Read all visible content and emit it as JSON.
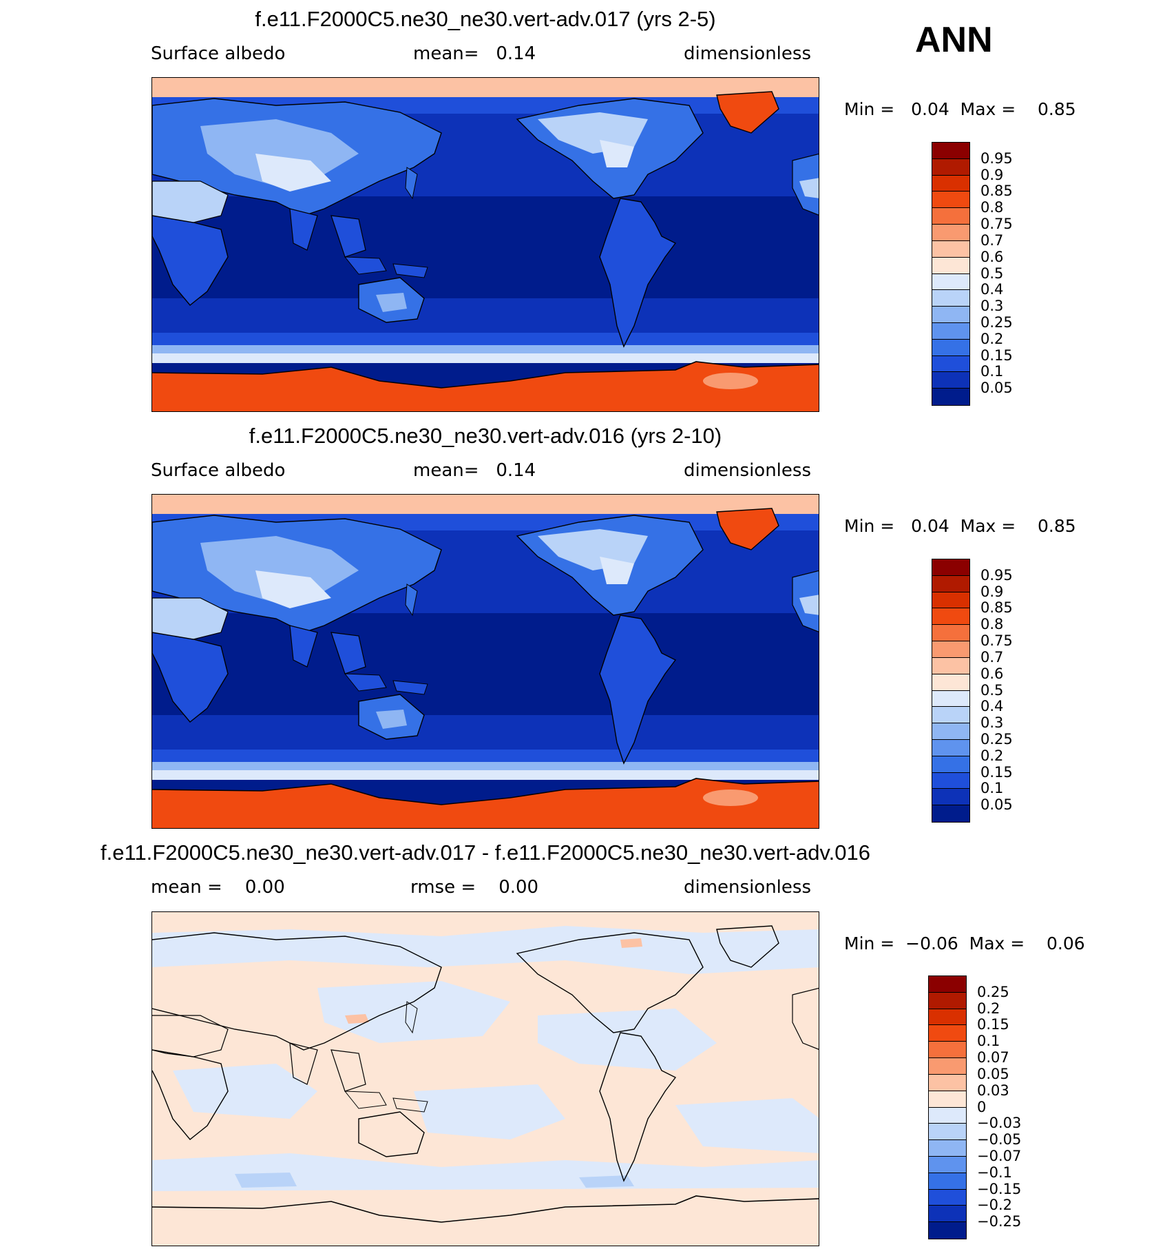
{
  "season": "ANN",
  "panels": [
    {
      "title": "f.e11.F2000C5.ne30_ne30.vert-adv.017 (yrs 2-5)",
      "left_text": "Surface albedo",
      "mid_text": "mean=   0.14",
      "right_text": "dimensionless",
      "minmax": "Min =   0.04  Max =    0.85",
      "colorbar_labels": [
        "0.95",
        "0.9",
        "0.85",
        "0.8",
        "0.75",
        "0.7",
        "0.6",
        "0.5",
        "0.4",
        "0.3",
        "0.25",
        "0.2",
        "0.15",
        "0.1",
        "0.05"
      ],
      "colors": [
        "#8b0000",
        "#b01a00",
        "#d93000",
        "#f04a10",
        "#f5703c",
        "#f99a70",
        "#fcc2a4",
        "#fde6d6",
        "#dde9fb",
        "#b9d3f8",
        "#8fb6f3",
        "#5f93ee",
        "#3571e6",
        "#1f4fda",
        "#0d32b8",
        "#001c8c"
      ]
    },
    {
      "title": "f.e11.F2000C5.ne30_ne30.vert-adv.016 (yrs 2-10)",
      "left_text": "Surface albedo",
      "mid_text": "mean=   0.14",
      "right_text": "dimensionless",
      "minmax": "Min =   0.04  Max =    0.85",
      "colorbar_labels": [
        "0.95",
        "0.9",
        "0.85",
        "0.8",
        "0.75",
        "0.7",
        "0.6",
        "0.5",
        "0.4",
        "0.3",
        "0.25",
        "0.2",
        "0.15",
        "0.1",
        "0.05"
      ],
      "colors": [
        "#8b0000",
        "#b01a00",
        "#d93000",
        "#f04a10",
        "#f5703c",
        "#f99a70",
        "#fcc2a4",
        "#fde6d6",
        "#dde9fb",
        "#b9d3f8",
        "#8fb6f3",
        "#5f93ee",
        "#3571e6",
        "#1f4fda",
        "#0d32b8",
        "#001c8c"
      ]
    },
    {
      "title": "f.e11.F2000C5.ne30_ne30.vert-adv.017 - f.e11.F2000C5.ne30_ne30.vert-adv.016",
      "left_text": "mean =    0.00",
      "mid_text": "rmse =    0.00",
      "right_text": "dimensionless",
      "minmax": "Min =  −0.06  Max =    0.06",
      "colorbar_labels": [
        "0.25",
        "0.2",
        "0.15",
        "0.1",
        "0.07",
        "0.05",
        "0.03",
        "0",
        "−0.03",
        "−0.05",
        "−0.07",
        "−0.1",
        "−0.15",
        "−0.2",
        "−0.25"
      ],
      "colors": [
        "#8b0000",
        "#b01a00",
        "#d93000",
        "#f04a10",
        "#f5703c",
        "#f99a70",
        "#fcc2a4",
        "#fde6d6",
        "#dde9fb",
        "#b9d3f8",
        "#8fb6f3",
        "#5f93ee",
        "#3571e6",
        "#1f4fda",
        "#0d32b8",
        "#001c8c"
      ]
    }
  ]
}
